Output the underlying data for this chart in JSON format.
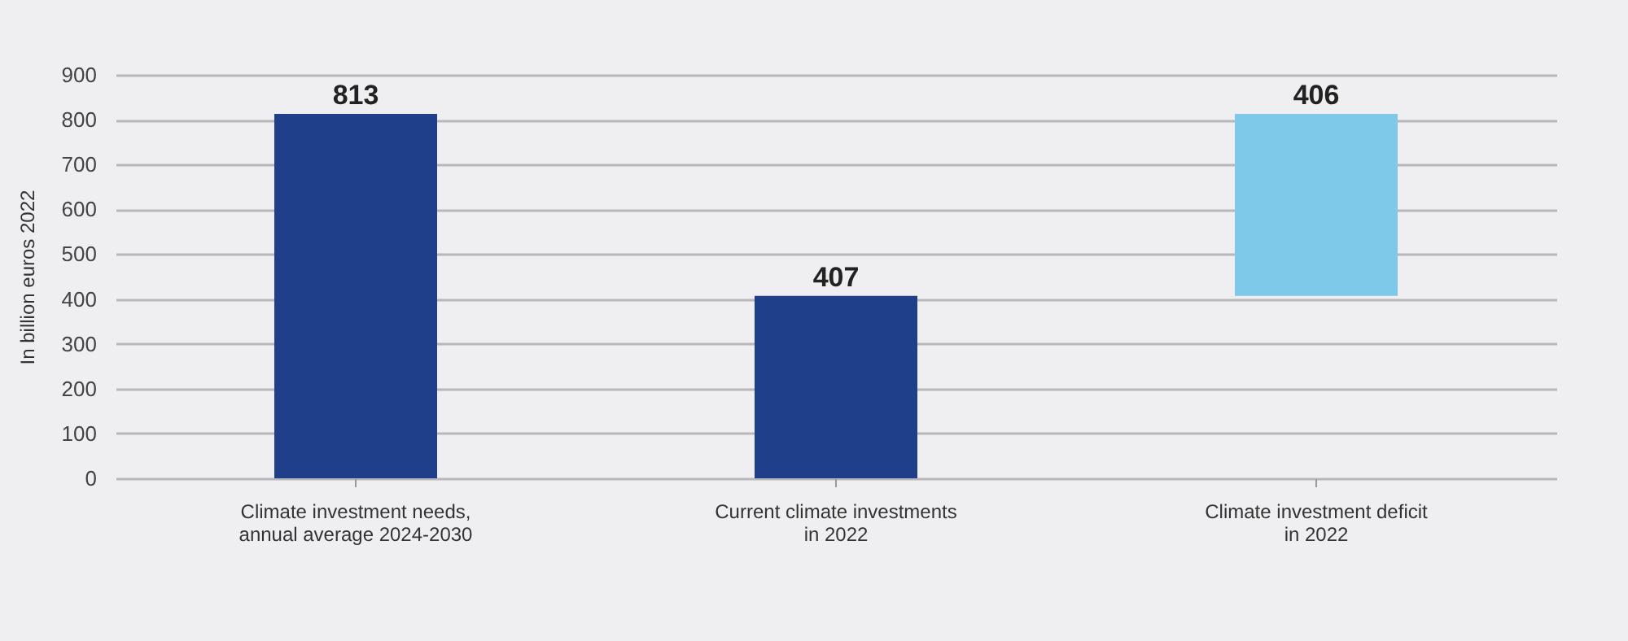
{
  "chart_data": {
    "type": "bar",
    "ylabel": "In billion euros 2022",
    "categories": [
      "Climate investment needs,\nannual average 2024-2030",
      "Current climate investments\nin 2022",
      "Climate investment deficit\nin 2022"
    ],
    "values": [
      813,
      407,
      406
    ],
    "base": [
      0,
      0,
      407
    ],
    "colors": [
      "#1f3f8a",
      "#1f3f8a",
      "#7ec8ea"
    ],
    "ylim": [
      0,
      900
    ],
    "yticks": [
      0,
      100,
      200,
      300,
      400,
      500,
      600,
      700,
      800,
      900
    ],
    "grid": "y",
    "data_labels": true
  }
}
